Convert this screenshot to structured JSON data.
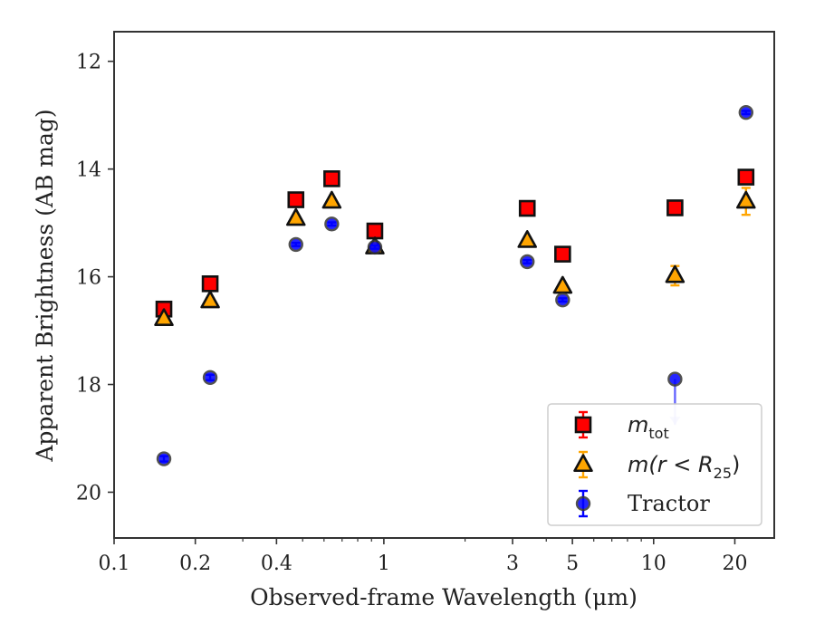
{
  "chart_data": {
    "type": "scatter",
    "xlabel": "Observed-frame Wavelength (μm)",
    "ylabel": "Apparent Brightness (AB mag)",
    "xscale": "log",
    "xlim": [
      0.1,
      28
    ],
    "ylim": [
      20.85,
      11.45
    ],
    "y_inverted": true,
    "grid": false,
    "legend_position": "lower-right",
    "x_ticks": [
      {
        "value": 0.1,
        "label": "0.1"
      },
      {
        "value": 0.2,
        "label": "0.2"
      },
      {
        "value": 0.4,
        "label": "0.4"
      },
      {
        "value": 1,
        "label": "1"
      },
      {
        "value": 3,
        "label": "3"
      },
      {
        "value": 5,
        "label": "5"
      },
      {
        "value": 10,
        "label": "10"
      },
      {
        "value": 20,
        "label": "20"
      }
    ],
    "y_ticks": [
      {
        "value": 12,
        "label": "12"
      },
      {
        "value": 14,
        "label": "14"
      },
      {
        "value": 16,
        "label": "16"
      },
      {
        "value": 18,
        "label": "18"
      },
      {
        "value": 20,
        "label": "20"
      }
    ],
    "series": [
      {
        "name": "m_tot",
        "legend_main": "m",
        "legend_sub": "tot",
        "marker": "square",
        "color": "#ff0000",
        "edge_color": "#111111",
        "points": [
          {
            "x": 0.153,
            "y": 16.6,
            "err": 0.05
          },
          {
            "x": 0.227,
            "y": 16.13,
            "err": 0.05
          },
          {
            "x": 0.472,
            "y": 14.57,
            "err": 0.03
          },
          {
            "x": 0.641,
            "y": 14.18,
            "err": 0.03
          },
          {
            "x": 0.926,
            "y": 15.15,
            "err": 0.03
          },
          {
            "x": 3.4,
            "y": 14.73,
            "err": 0.03
          },
          {
            "x": 4.6,
            "y": 15.58,
            "err": 0.03
          },
          {
            "x": 12.0,
            "y": 14.72,
            "err": 0.05
          },
          {
            "x": 22.0,
            "y": 14.15,
            "err": 0.05
          }
        ]
      },
      {
        "name": "m(r < R25)",
        "legend_main": "m(r < R",
        "legend_sub": "25",
        "legend_tail": ")",
        "marker": "triangle",
        "color": "#ffa500",
        "edge_color": "#111111",
        "points": [
          {
            "x": 0.153,
            "y": 16.78,
            "err": 0.05
          },
          {
            "x": 0.227,
            "y": 16.45,
            "err": 0.05
          },
          {
            "x": 0.472,
            "y": 14.92,
            "err": 0.03
          },
          {
            "x": 0.641,
            "y": 14.6,
            "err": 0.03
          },
          {
            "x": 0.926,
            "y": 15.45,
            "err": 0.03
          },
          {
            "x": 3.4,
            "y": 15.33,
            "err": 0.03
          },
          {
            "x": 4.6,
            "y": 16.18,
            "err": 0.03
          },
          {
            "x": 12.0,
            "y": 15.98,
            "err": 0.18
          },
          {
            "x": 22.0,
            "y": 14.6,
            "err": 0.25
          }
        ]
      },
      {
        "name": "Tractor",
        "legend_main": "Tractor",
        "marker": "circle",
        "color": "#0000ff",
        "edge_color": "#333333",
        "points": [
          {
            "x": 0.153,
            "y": 19.38,
            "err": 0.05
          },
          {
            "x": 0.227,
            "y": 17.87,
            "err": 0.05
          },
          {
            "x": 0.472,
            "y": 15.4,
            "err": 0.03
          },
          {
            "x": 0.641,
            "y": 15.02,
            "err": 0.03
          },
          {
            "x": 0.926,
            "y": 15.45,
            "err": 0.03
          },
          {
            "x": 3.4,
            "y": 15.72,
            "err": 0.03
          },
          {
            "x": 4.6,
            "y": 16.43,
            "err": 0.03
          },
          {
            "x": 12.0,
            "y": 17.9,
            "err": 0.0,
            "upper_limit": true,
            "limit_to": 18.75
          },
          {
            "x": 22.0,
            "y": 12.95,
            "err": 0.03
          }
        ]
      }
    ]
  }
}
